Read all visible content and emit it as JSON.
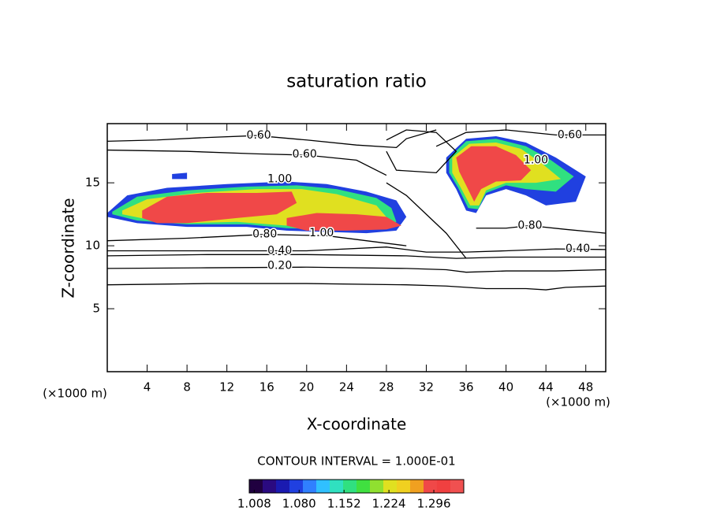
{
  "chart_data": {
    "type": "contour",
    "title": "saturation ratio",
    "x_label": "X-coordinate",
    "y_label": "Z-coordinate",
    "x_unit_label": "(×1000 m)",
    "y_unit_label": "(×1000 m)",
    "xlim": [
      0,
      50
    ],
    "ylim": [
      0,
      19.7
    ],
    "xticks": [
      4,
      8,
      12,
      16,
      20,
      24,
      28,
      32,
      36,
      40,
      44,
      48
    ],
    "yticks": [
      5,
      10,
      15
    ],
    "contour_interval_label": "CONTOUR INTERVAL = 1.000E-01",
    "colormap": [
      "#200040",
      "#2a0a80",
      "#1a1ab0",
      "#2040e0",
      "#3080ff",
      "#30c0ff",
      "#30e0c0",
      "#30e080",
      "#40e040",
      "#90e030",
      "#e0e020",
      "#f0d020",
      "#f0a020",
      "#f04848",
      "#f04040",
      "#f05050"
    ],
    "colorbar_lim": [
      1.0,
      1.344
    ],
    "colorbar_ticks": [
      1.008,
      {
        "value": 1.08,
        "label": "1.080"
      },
      1.152,
      1.224,
      1.296
    ],
    "regions": [
      {
        "level": 1.08,
        "x": [
          0,
          2,
          6,
          12,
          18,
          22,
          26,
          29,
          30,
          29,
          26,
          22,
          18,
          14,
          8,
          3,
          0
        ],
        "y": [
          12.6,
          14.0,
          14.6,
          14.9,
          15.1,
          14.9,
          14.3,
          13.6,
          12.3,
          11.2,
          11.0,
          11.1,
          11.2,
          11.5,
          11.5,
          11.8,
          12.3
        ]
      },
      {
        "level": 1.08,
        "x": [
          34,
          36,
          39,
          42,
          45,
          48,
          47,
          44,
          42,
          40,
          38,
          37,
          36,
          35,
          34
        ],
        "y": [
          17.0,
          18.5,
          18.7,
          18.2,
          17.0,
          15.5,
          13.5,
          13.2,
          14.0,
          14.5,
          14.0,
          12.6,
          12.8,
          14.5,
          15.8
        ]
      },
      {
        "level": 1.08,
        "x": [
          6.5,
          8,
          8,
          6.5
        ],
        "y": [
          15.7,
          15.8,
          15.3,
          15.3
        ]
      },
      {
        "level": 1.152,
        "x": [
          0.5,
          3,
          8,
          14,
          19,
          23,
          27,
          28.5,
          29,
          27,
          22,
          18,
          14,
          8,
          3,
          0.5
        ],
        "y": [
          12.7,
          13.9,
          14.4,
          14.7,
          14.8,
          14.5,
          13.8,
          13.0,
          11.9,
          11.3,
          11.3,
          11.4,
          11.7,
          11.7,
          12.0,
          12.5
        ]
      },
      {
        "level": 1.152,
        "x": [
          34.3,
          36,
          39,
          42,
          44.5,
          46.8,
          45,
          42,
          40,
          38,
          37.2,
          36.2,
          35.2,
          34.3
        ],
        "y": [
          17.0,
          18.3,
          18.5,
          17.9,
          16.8,
          15.5,
          14.3,
          14.5,
          14.8,
          14.2,
          12.9,
          13.0,
          14.6,
          15.8
        ]
      },
      {
        "level": 1.224,
        "x": [
          1.5,
          4,
          9,
          15,
          19.5,
          23,
          27,
          28.3,
          27,
          22,
          18,
          13,
          8,
          4,
          1.5
        ],
        "y": [
          12.8,
          13.7,
          14.2,
          14.5,
          14.5,
          14.1,
          13.2,
          12.0,
          11.5,
          11.4,
          11.6,
          11.9,
          11.8,
          12.1,
          12.5
        ]
      },
      {
        "level": 1.224,
        "x": [
          34.6,
          36.3,
          39,
          41.5,
          43.5,
          45.5,
          43,
          40,
          38,
          37.3,
          36.4,
          35.4,
          34.6
        ],
        "y": [
          17.0,
          18.1,
          18.2,
          17.7,
          16.6,
          15.3,
          15.0,
          15.0,
          14.4,
          13.2,
          13.2,
          14.7,
          15.8
        ]
      },
      {
        "level": 1.296,
        "x": [
          3.5,
          6,
          10,
          15,
          18.5,
          19,
          17,
          13,
          8,
          5,
          3.5
        ],
        "y": [
          12.8,
          13.9,
          14.2,
          14.2,
          14.3,
          13.4,
          12.5,
          12.2,
          11.8,
          11.8,
          12.2
        ]
      },
      {
        "level": 1.296,
        "x": [
          18,
          21,
          25,
          28,
          29.5,
          28,
          24,
          20,
          18
        ],
        "y": [
          12.2,
          12.6,
          12.5,
          12.3,
          11.6,
          11.3,
          11.2,
          11.2,
          11.6
        ]
      },
      {
        "level": 1.296,
        "x": [
          35,
          36.5,
          39,
          41,
          42.5,
          41.5,
          39,
          37.5,
          36.8,
          36,
          35.3
        ],
        "y": [
          17.0,
          17.9,
          17.9,
          17.2,
          16.0,
          15.2,
          15.1,
          14.5,
          13.5,
          14.8,
          15.9
        ]
      }
    ],
    "contours": [
      {
        "x": [
          0,
          10,
          20,
          30,
          34,
          38,
          42,
          44,
          46,
          50
        ],
        "y": [
          6.9,
          7.0,
          7.0,
          6.9,
          6.8,
          6.6,
          6.6,
          6.5,
          6.7,
          6.8
        ]
      },
      {
        "x": [
          0,
          10,
          20,
          30,
          34,
          36,
          40,
          45,
          50
        ],
        "y": [
          8.2,
          8.25,
          8.3,
          8.2,
          8.1,
          7.9,
          8.0,
          8.0,
          8.1
        ]
      },
      {
        "x": [
          0,
          10,
          20,
          30,
          35,
          40,
          50
        ],
        "y": [
          9.2,
          9.3,
          9.3,
          9.2,
          9.0,
          9.1,
          9.1
        ]
      },
      {
        "x": [
          0,
          10,
          20,
          28,
          32,
          36,
          40,
          45,
          50
        ],
        "y": [
          9.6,
          9.6,
          9.6,
          9.9,
          9.5,
          9.5,
          9.6,
          9.75,
          9.7
        ]
      },
      {
        "x": [
          0,
          8,
          15.8,
          22,
          27,
          30
        ],
        "y": [
          10.4,
          10.6,
          10.9,
          10.8,
          10.3,
          10.0
        ]
      },
      {
        "x": [
          37,
          40,
          42.4,
          46,
          50
        ],
        "y": [
          11.4,
          11.4,
          11.6,
          11.3,
          11.0
        ]
      },
      {
        "x": [
          0,
          5,
          10,
          15,
          20,
          25,
          29,
          30,
          33
        ],
        "y": [
          18.3,
          18.4,
          18.6,
          18.75,
          18.4,
          18.0,
          17.8,
          18.5,
          19.2
        ]
      },
      {
        "x": [
          0,
          8,
          15,
          20,
          25,
          28
        ],
        "y": [
          17.6,
          17.5,
          17.3,
          17.2,
          16.8,
          15.6
        ]
      },
      {
        "x": [
          33,
          36,
          40,
          45,
          50
        ],
        "y": [
          17.9,
          19.0,
          19.2,
          18.8,
          18.8
        ]
      },
      {
        "x": [
          28,
          30,
          32,
          34,
          36
        ],
        "y": [
          15,
          14,
          12.5,
          11,
          9.0
        ]
      },
      {
        "x": [
          28,
          30,
          33,
          35,
          33,
          29,
          28
        ],
        "y": [
          18.4,
          19.2,
          19.0,
          17.5,
          15.8,
          16.0,
          17.5
        ]
      }
    ],
    "contour_labels": [
      {
        "label": "0.20",
        "x": 17.3,
        "y": 8.4
      },
      {
        "label": "0.40",
        "x": 17.3,
        "y": 9.6
      },
      {
        "label": "0.40",
        "x": 47.2,
        "y": 9.75
      },
      {
        "label": "0.60",
        "x": 15.2,
        "y": 18.75
      },
      {
        "label": "0.60",
        "x": 19.8,
        "y": 17.25
      },
      {
        "label": "0.60",
        "x": 46.4,
        "y": 18.8
      },
      {
        "label": "0.80",
        "x": 15.8,
        "y": 10.9
      },
      {
        "label": "0.80",
        "x": 42.4,
        "y": 11.6
      },
      {
        "label": "1.00",
        "x": 17.3,
        "y": 15.3
      },
      {
        "label": "1.00",
        "x": 21.5,
        "y": 11.0
      },
      {
        "label": "1.00",
        "x": 43.0,
        "y": 16.8
      }
    ]
  }
}
